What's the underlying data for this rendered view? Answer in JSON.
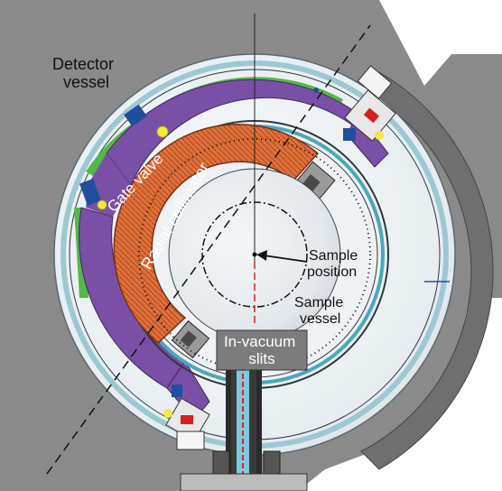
{
  "labels": {
    "detector_vessel_line1": "Detector",
    "detector_vessel_line2": "vessel",
    "gate_valve": "Gate valve",
    "radial_collimator": "Radial collimator",
    "sample_position_line1": "Sample",
    "sample_position_line2": "position",
    "sample_vessel_line1": "Sample",
    "sample_vessel_line2": "vessel",
    "in_vacuum_slits_line1": "In-vacuum",
    "in_vacuum_slits_line2": "slits"
  },
  "colors": {
    "vessel_gray": "#8a8a8a",
    "vessel_dark": "#6e6e6e",
    "shell_light": "#dfe6ea",
    "shell_cyan": "#bfe3ec",
    "detector_purple": "#7a4fa6",
    "detector_green": "#54b848",
    "collimator_orange": "#e0703a",
    "collimator_dark": "#b8532a",
    "valve_blue": "#1f4f9c",
    "valve_yellow": "#f4ea3c",
    "slit_box": "#7c7c7c",
    "beam_red": "#d62020"
  }
}
